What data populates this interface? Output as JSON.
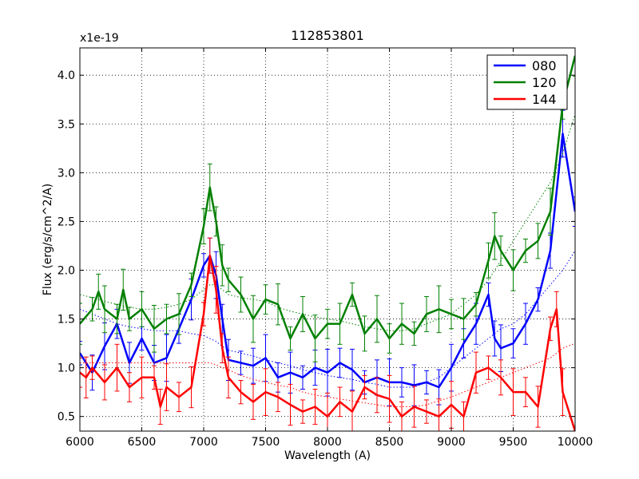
{
  "chart_data": {
    "type": "line",
    "title": "112853801",
    "xlabel": "Wavelength (A)",
    "ylabel": "Flux (erg/s/cm^2/A)",
    "y_multiplier": "x1e-19",
    "xlim": [
      6000,
      10000
    ],
    "ylim": [
      0.35,
      4.28
    ],
    "x_ticks": [
      6000,
      6500,
      7000,
      7500,
      8000,
      8500,
      9000,
      9500,
      10000
    ],
    "x_tick_labels": [
      "6000",
      "6500",
      "7000",
      "7500",
      "8000",
      "8500",
      "9000",
      "9500",
      "10000"
    ],
    "y_ticks": [
      0.5,
      1.0,
      1.5,
      2.0,
      2.5,
      3.0,
      3.5,
      4.0
    ],
    "y_tick_labels": [
      "0.5",
      "1.0",
      "1.5",
      "2.0",
      "2.5",
      "3.0",
      "3.5",
      "4.0"
    ],
    "grid": true,
    "legend_position": "top-right",
    "series": [
      {
        "name": "080",
        "color": "#0000ff",
        "x": [
          6000,
          6100,
          6200,
          6300,
          6400,
          6500,
          6600,
          6700,
          6800,
          6900,
          7000,
          7050,
          7100,
          7150,
          7200,
          7300,
          7400,
          7500,
          7600,
          7700,
          7800,
          7900,
          8000,
          8100,
          8200,
          8300,
          8400,
          8500,
          8600,
          8700,
          8800,
          8900,
          9000,
          9100,
          9200,
          9300,
          9350,
          9400,
          9500,
          9600,
          9700,
          9800,
          9900,
          10000
        ],
        "y": [
          1.15,
          0.95,
          1.22,
          1.45,
          1.05,
          1.3,
          1.05,
          1.1,
          1.4,
          1.7,
          2.05,
          2.15,
          1.95,
          1.5,
          1.08,
          1.05,
          1.02,
          1.1,
          0.9,
          0.95,
          0.9,
          1.0,
          0.95,
          1.05,
          0.98,
          0.85,
          0.9,
          0.85,
          0.85,
          0.82,
          0.85,
          0.8,
          1.0,
          1.25,
          1.45,
          1.75,
          1.3,
          1.2,
          1.25,
          1.45,
          1.7,
          2.2,
          3.4,
          2.6
        ],
        "trend": [
          1.6,
          1.55,
          1.5,
          1.45,
          1.42,
          1.4,
          1.38,
          1.38,
          1.38,
          1.35,
          1.33,
          1.3,
          1.27,
          1.22,
          1.18,
          1.15,
          1.12,
          1.08,
          1.05,
          1.02,
          0.98,
          0.95,
          0.92,
          0.9,
          0.88,
          0.85,
          0.83,
          0.8,
          0.8,
          0.8,
          0.85,
          0.9,
          1.0,
          1.1,
          1.2,
          1.3,
          1.35,
          1.4,
          1.45,
          1.55,
          1.7,
          1.85,
          2.0,
          2.2
        ]
      },
      {
        "name": "120",
        "color": "#008000",
        "x": [
          6000,
          6100,
          6150,
          6200,
          6300,
          6350,
          6400,
          6500,
          6600,
          6700,
          6800,
          6900,
          7000,
          7050,
          7100,
          7150,
          7200,
          7300,
          7400,
          7500,
          7600,
          7700,
          7800,
          7900,
          8000,
          8100,
          8200,
          8300,
          8400,
          8500,
          8600,
          8700,
          8800,
          8900,
          9000,
          9100,
          9200,
          9300,
          9350,
          9400,
          9500,
          9600,
          9700,
          9800,
          9900,
          10000
        ],
        "y": [
          1.45,
          1.6,
          1.78,
          1.6,
          1.5,
          1.8,
          1.5,
          1.6,
          1.4,
          1.5,
          1.55,
          1.85,
          2.45,
          2.85,
          2.5,
          2.05,
          1.9,
          1.75,
          1.5,
          1.7,
          1.65,
          1.3,
          1.55,
          1.3,
          1.45,
          1.45,
          1.75,
          1.35,
          1.5,
          1.3,
          1.45,
          1.35,
          1.55,
          1.6,
          1.55,
          1.5,
          1.65,
          2.1,
          2.35,
          2.2,
          2.0,
          2.2,
          2.3,
          2.6,
          3.7,
          4.2
        ],
        "trend": [
          1.75,
          1.72,
          1.7,
          1.68,
          1.65,
          1.63,
          1.62,
          1.6,
          1.6,
          1.62,
          1.65,
          1.7,
          1.8,
          1.85,
          1.85,
          1.8,
          1.75,
          1.72,
          1.7,
          1.68,
          1.62,
          1.58,
          1.55,
          1.52,
          1.5,
          1.48,
          1.45,
          1.42,
          1.4,
          1.38,
          1.38,
          1.4,
          1.45,
          1.5,
          1.55,
          1.65,
          1.75,
          1.9,
          2.0,
          2.1,
          2.3,
          2.5,
          2.7,
          2.9,
          3.2,
          3.6
        ]
      },
      {
        "name": "144",
        "color": "#ff0000",
        "x": [
          6000,
          6050,
          6100,
          6200,
          6300,
          6400,
          6500,
          6600,
          6650,
          6700,
          6800,
          6900,
          7000,
          7050,
          7100,
          7150,
          7200,
          7300,
          7400,
          7500,
          7600,
          7700,
          7800,
          7900,
          8000,
          8100,
          8200,
          8300,
          8400,
          8500,
          8600,
          8700,
          8800,
          8900,
          9000,
          9100,
          9200,
          9300,
          9400,
          9500,
          9600,
          9700,
          9800,
          9850,
          9900,
          10000
        ],
        "y": [
          0.95,
          0.9,
          1.0,
          0.85,
          1.0,
          0.8,
          0.9,
          0.9,
          0.6,
          0.8,
          0.7,
          0.8,
          1.55,
          2.15,
          1.8,
          1.2,
          0.9,
          0.75,
          0.65,
          0.75,
          0.7,
          0.62,
          0.55,
          0.6,
          0.5,
          0.65,
          0.55,
          0.8,
          0.72,
          0.68,
          0.5,
          0.6,
          0.55,
          0.5,
          0.62,
          0.5,
          0.95,
          1.0,
          0.9,
          0.75,
          0.75,
          0.6,
          1.4,
          1.6,
          0.75,
          0.35
        ],
        "trend": [
          1.05,
          1.05,
          1.05,
          1.05,
          1.05,
          1.05,
          1.05,
          1.05,
          1.05,
          1.05,
          1.05,
          1.05,
          1.05,
          1.05,
          1.03,
          1.0,
          0.98,
          0.92,
          0.88,
          0.85,
          0.82,
          0.8,
          0.75,
          0.72,
          0.7,
          0.68,
          0.66,
          0.64,
          0.62,
          0.6,
          0.6,
          0.6,
          0.62,
          0.66,
          0.7,
          0.75,
          0.8,
          0.85,
          0.9,
          0.95,
          1.0,
          1.05,
          1.1,
          1.15,
          1.2,
          1.25
        ]
      }
    ]
  }
}
